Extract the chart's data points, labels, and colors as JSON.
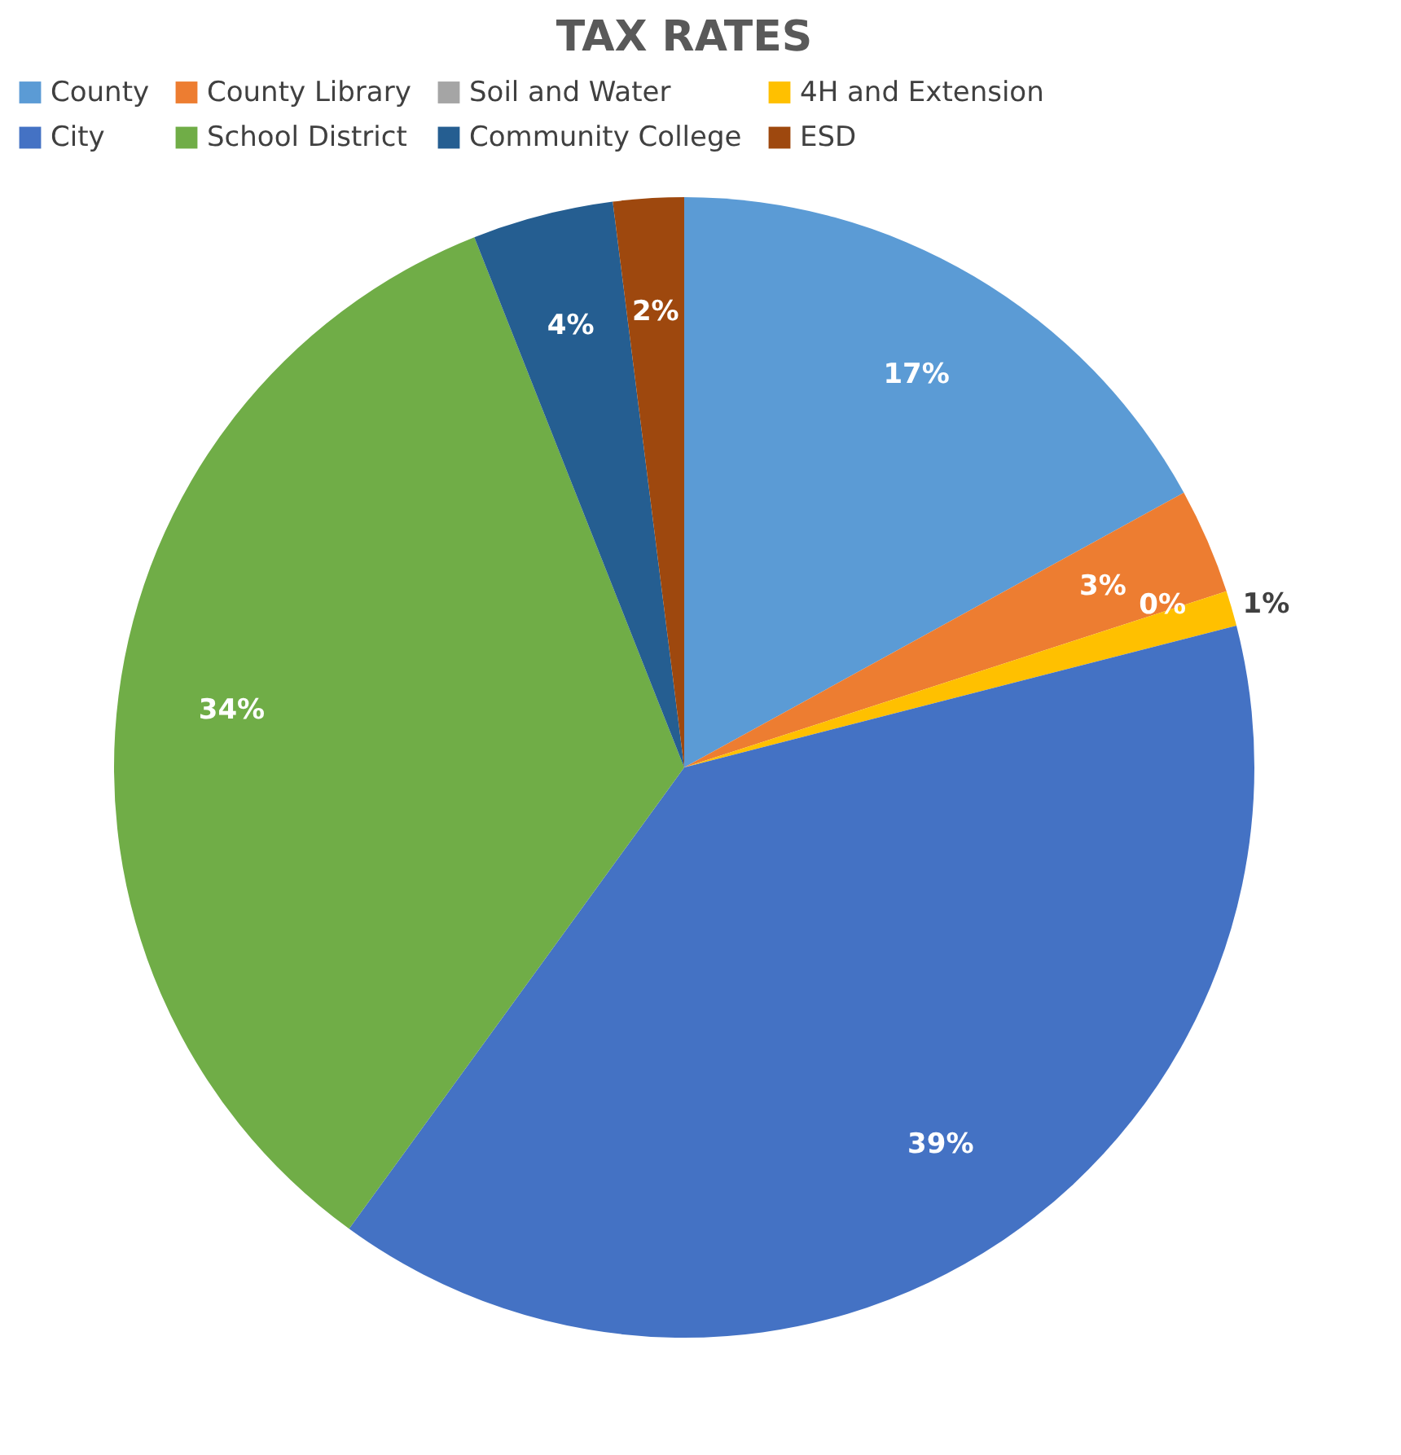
{
  "chart_data": {
    "type": "pie",
    "title": "TAX RATES",
    "categories": [
      "County",
      "County Library",
      "Soil and Water",
      "4H and Extension",
      "City",
      "School District",
      "Community College",
      "ESD"
    ],
    "values": [
      17,
      3,
      0,
      1,
      39,
      34,
      4,
      2
    ],
    "value_labels": [
      "17%",
      "3%",
      "0%",
      "1%",
      "39%",
      "34%",
      "4%",
      "2%"
    ],
    "colors": [
      "#5b9bd5",
      "#ed7d31",
      "#a5a5a5",
      "#ffc000",
      "#4472c4",
      "#70ad47",
      "#255e91",
      "#9e480e"
    ],
    "legend": "top"
  }
}
